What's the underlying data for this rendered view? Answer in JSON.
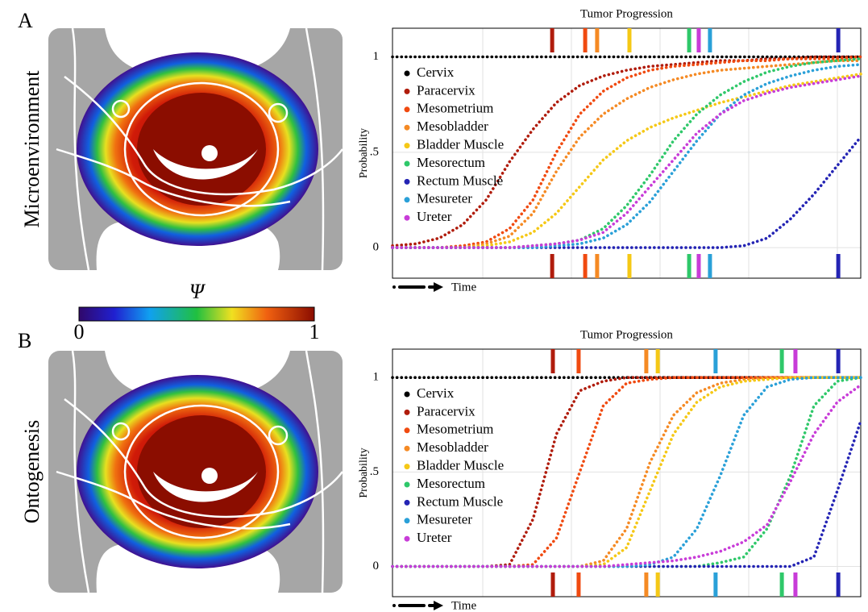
{
  "panels": [
    {
      "label": "A",
      "image_label": "Microenvironment"
    },
    {
      "label": "B",
      "image_label": "Ontogenesis"
    }
  ],
  "colorbar": {
    "label": "Ψ",
    "lim": [
      0,
      1
    ],
    "ticks": [
      0,
      1
    ]
  },
  "chart_data": [
    {
      "type": "line",
      "title": "Tumor Progression",
      "y_label": "Probability",
      "x_label": "Time",
      "categories": [
        null,
        null,
        null,
        null,
        null,
        null,
        null,
        null,
        null,
        null,
        null,
        null,
        null,
        null,
        null,
        null,
        null,
        null,
        null,
        null,
        null
      ],
      "ylim": [
        -0.16,
        1.15
      ],
      "yticks": [
        0,
        {
          "value": 0.5,
          "label": ".5"
        },
        1
      ],
      "grid": true,
      "series": [
        {
          "name": "Cervix",
          "color": "#000000",
          "values": [
            1,
            1,
            1,
            1,
            1,
            1,
            1,
            1,
            1,
            1,
            1,
            1,
            1,
            1,
            1,
            1,
            1,
            1,
            1,
            1,
            1
          ]
        },
        {
          "name": "Paracervix",
          "color": "#b01c0c",
          "marker": 6.82,
          "values": [
            0.01,
            0.02,
            0.05,
            0.12,
            0.25,
            0.45,
            0.62,
            0.76,
            0.85,
            0.9,
            0.93,
            0.95,
            0.96,
            0.97,
            0.98,
            0.98,
            0.99,
            0.99,
            1,
            1,
            1
          ]
        },
        {
          "name": "Mesometrium",
          "color": "#f04a10",
          "marker": 8.23,
          "values": [
            0,
            0,
            0,
            0.01,
            0.03,
            0.1,
            0.25,
            0.5,
            0.7,
            0.82,
            0.89,
            0.93,
            0.95,
            0.96,
            0.97,
            0.98,
            0.98,
            0.99,
            0.99,
            0.99,
            1
          ]
        },
        {
          "name": "Mesobladder",
          "color": "#f58a24",
          "marker": 8.74,
          "values": [
            0,
            0,
            0,
            0,
            0.02,
            0.06,
            0.18,
            0.4,
            0.58,
            0.7,
            0.78,
            0.84,
            0.88,
            0.91,
            0.93,
            0.94,
            0.95,
            0.96,
            0.97,
            0.98,
            0.98
          ]
        },
        {
          "name": "Bladder Muscle",
          "color": "#f5c816",
          "marker": 10.12,
          "values": [
            0,
            0,
            0,
            0,
            0.01,
            0.03,
            0.08,
            0.18,
            0.32,
            0.46,
            0.56,
            0.63,
            0.68,
            0.72,
            0.76,
            0.79,
            0.82,
            0.85,
            0.87,
            0.89,
            0.91
          ]
        },
        {
          "name": "Mesorectum",
          "color": "#2fc86a",
          "marker": 12.67,
          "values": [
            0,
            0,
            0,
            0,
            0,
            0,
            0.01,
            0.02,
            0.04,
            0.1,
            0.22,
            0.38,
            0.56,
            0.7,
            0.8,
            0.87,
            0.92,
            0.95,
            0.97,
            0.98,
            0.99
          ]
        },
        {
          "name": "Rectum Muscle",
          "color": "#2424b4",
          "marker": 19.04,
          "values": [
            0,
            0,
            0,
            0,
            0,
            0,
            0,
            0,
            0,
            0,
            0,
            0,
            0,
            0,
            0,
            0.01,
            0.05,
            0.15,
            0.28,
            0.43,
            0.58
          ]
        },
        {
          "name": "Mesureter",
          "color": "#2aa0d8",
          "marker": 13.56,
          "values": [
            0,
            0,
            0,
            0,
            0,
            0,
            0,
            0.01,
            0.02,
            0.05,
            0.12,
            0.24,
            0.4,
            0.56,
            0.7,
            0.8,
            0.86,
            0.9,
            0.93,
            0.95,
            0.96
          ]
        },
        {
          "name": "Ureter",
          "color": "#c83cd8",
          "marker": 13.08,
          "values": [
            0,
            0,
            0,
            0,
            0,
            0,
            0.01,
            0.02,
            0.04,
            0.08,
            0.18,
            0.32,
            0.46,
            0.6,
            0.7,
            0.77,
            0.81,
            0.84,
            0.86,
            0.88,
            0.9
          ]
        }
      ]
    },
    {
      "type": "line",
      "title": "Tumor Progression",
      "y_label": "Probability",
      "x_label": "Time",
      "categories": [
        null,
        null,
        null,
        null,
        null,
        null,
        null,
        null,
        null,
        null,
        null,
        null,
        null,
        null,
        null,
        null,
        null,
        null,
        null,
        null,
        null
      ],
      "ylim": [
        -0.16,
        1.15
      ],
      "yticks": [
        0,
        {
          "value": 0.5,
          "label": ".5"
        },
        1
      ],
      "grid": true,
      "series": [
        {
          "name": "Cervix",
          "color": "#000000",
          "values": [
            1,
            1,
            1,
            1,
            1,
            1,
            1,
            1,
            1,
            1,
            1,
            1,
            1,
            1,
            1,
            1,
            1,
            1,
            1,
            1,
            1
          ]
        },
        {
          "name": "Paracervix",
          "color": "#b01c0c",
          "marker": 6.85,
          "values": [
            0,
            0,
            0,
            0,
            0,
            0.01,
            0.25,
            0.7,
            0.93,
            0.98,
            1,
            1,
            1,
            1,
            1,
            1,
            1,
            1,
            1,
            1,
            1
          ]
        },
        {
          "name": "Mesometrium",
          "color": "#f04a10",
          "marker": 7.95,
          "values": [
            0,
            0,
            0,
            0,
            0,
            0,
            0.01,
            0.15,
            0.5,
            0.85,
            0.97,
            0.99,
            1,
            1,
            1,
            1,
            1,
            1,
            1,
            1,
            1
          ]
        },
        {
          "name": "Mesobladder",
          "color": "#f58a24",
          "marker": 10.84,
          "values": [
            0,
            0,
            0,
            0,
            0,
            0,
            0,
            0,
            0,
            0.03,
            0.2,
            0.55,
            0.8,
            0.92,
            0.97,
            0.99,
            1,
            1,
            1,
            1,
            1
          ]
        },
        {
          "name": "Bladder Muscle",
          "color": "#f5c816",
          "marker": 11.33,
          "values": [
            0,
            0,
            0,
            0,
            0,
            0,
            0,
            0,
            0,
            0.01,
            0.1,
            0.4,
            0.7,
            0.87,
            0.95,
            0.98,
            0.99,
            1,
            1,
            1,
            1
          ]
        },
        {
          "name": "Mesorectum",
          "color": "#2fc86a",
          "marker": 16.63,
          "values": [
            0,
            0,
            0,
            0,
            0,
            0,
            0,
            0,
            0,
            0,
            0,
            0,
            0,
            0,
            0.02,
            0.05,
            0.2,
            0.48,
            0.85,
            0.98,
            1
          ]
        },
        {
          "name": "Rectum Muscle",
          "color": "#2424b4",
          "marker": 19.04,
          "values": [
            0,
            0,
            0,
            0,
            0,
            0,
            0,
            0,
            0,
            0,
            0,
            0,
            0,
            0,
            0,
            0,
            0,
            0,
            0.05,
            0.4,
            0.77
          ]
        },
        {
          "name": "Mesureter",
          "color": "#2aa0d8",
          "marker": 13.8,
          "values": [
            0,
            0,
            0,
            0,
            0,
            0,
            0,
            0,
            0,
            0,
            0,
            0.01,
            0.05,
            0.2,
            0.48,
            0.8,
            0.95,
            0.99,
            1,
            1,
            1
          ]
        },
        {
          "name": "Ureter",
          "color": "#c83cd8",
          "marker": 17.21,
          "values": [
            0,
            0,
            0,
            0,
            0,
            0,
            0,
            0,
            0,
            0,
            0.01,
            0.02,
            0.03,
            0.05,
            0.08,
            0.13,
            0.22,
            0.45,
            0.7,
            0.87,
            0.96
          ]
        }
      ]
    }
  ]
}
